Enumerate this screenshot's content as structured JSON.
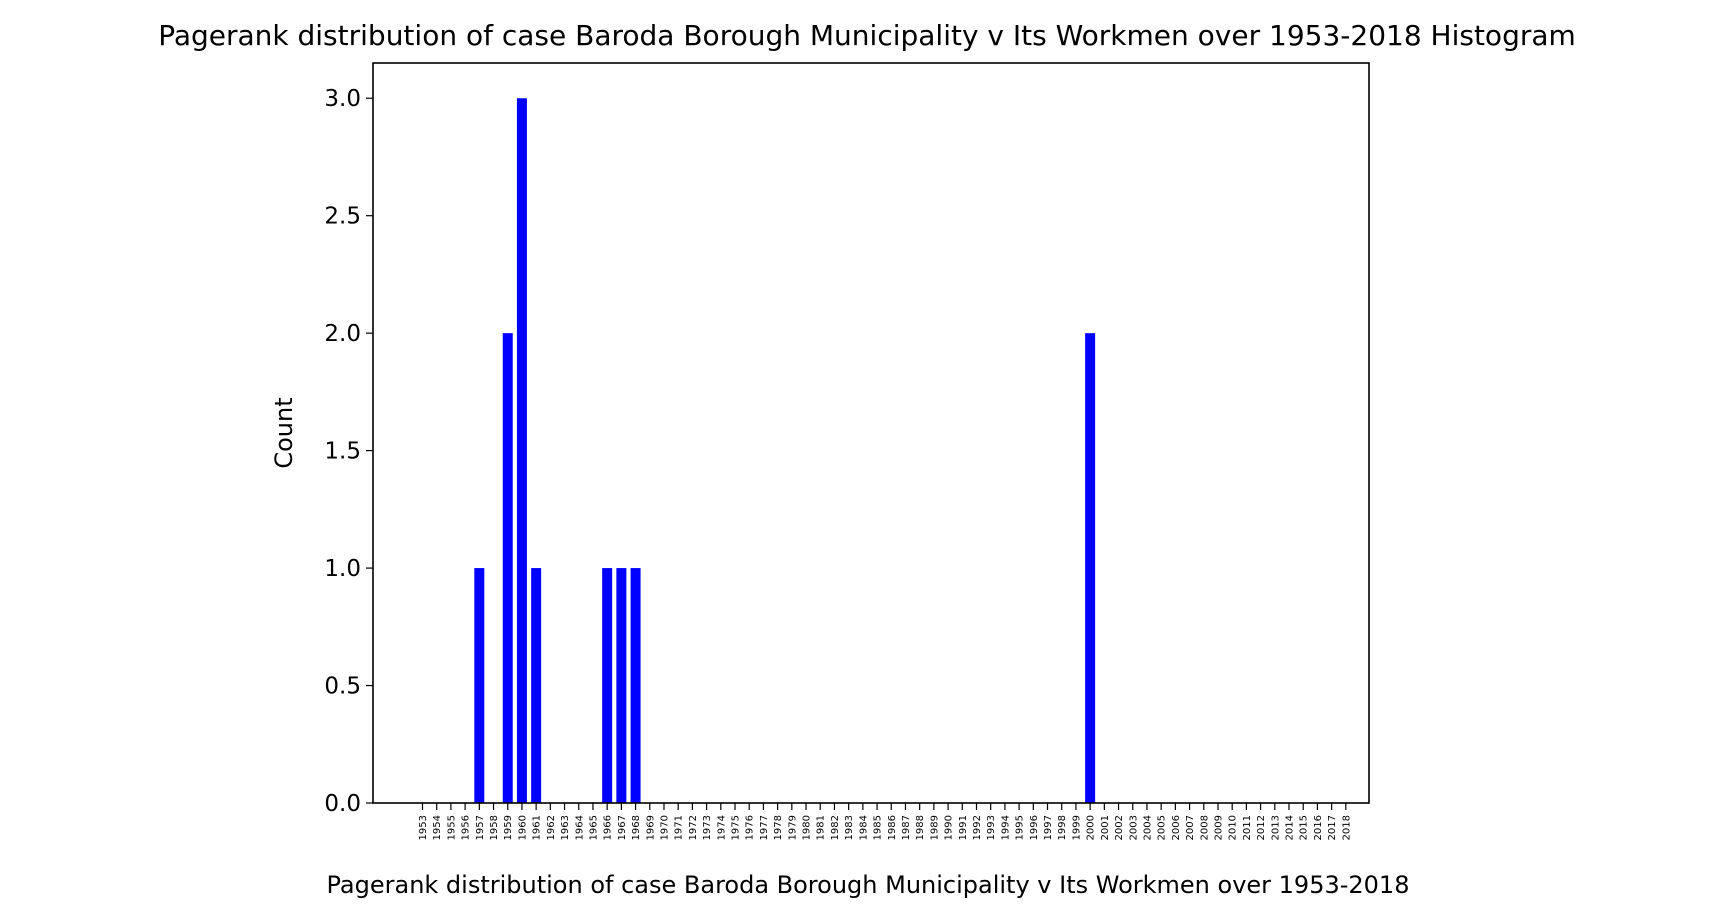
{
  "chart_data": {
    "type": "bar",
    "title": "Pagerank distribution of case Baroda Borough Municipality v Its Workmen over 1953-2018 Histogram",
    "xlabel": "Pagerank distribution of case Baroda Borough Municipality v Its Workmen over 1953-2018",
    "ylabel": "Count",
    "categories": [
      "1953",
      "1954",
      "1955",
      "1956",
      "1957",
      "1958",
      "1959",
      "1960",
      "1961",
      "1962",
      "1963",
      "1964",
      "1965",
      "1966",
      "1967",
      "1968",
      "1969",
      "1970",
      "1971",
      "1972",
      "1973",
      "1974",
      "1975",
      "1976",
      "1977",
      "1978",
      "1979",
      "1980",
      "1981",
      "1982",
      "1983",
      "1984",
      "1985",
      "1986",
      "1987",
      "1988",
      "1989",
      "1990",
      "1991",
      "1992",
      "1993",
      "1994",
      "1995",
      "1996",
      "1997",
      "1998",
      "1999",
      "2000",
      "2001",
      "2002",
      "2003",
      "2004",
      "2005",
      "2006",
      "2007",
      "2008",
      "2009",
      "2010",
      "2011",
      "2012",
      "2013",
      "2014",
      "2015",
      "2016",
      "2017",
      "2018"
    ],
    "values": [
      0,
      0,
      0,
      0,
      1,
      0,
      2,
      3,
      1,
      0,
      0,
      0,
      0,
      1,
      1,
      1,
      0,
      0,
      0,
      0,
      0,
      0,
      0,
      0,
      0,
      0,
      0,
      0,
      0,
      0,
      0,
      0,
      0,
      0,
      0,
      0,
      0,
      0,
      0,
      0,
      0,
      0,
      0,
      0,
      0,
      0,
      0,
      2,
      0,
      0,
      0,
      0,
      0,
      0,
      0,
      0,
      0,
      0,
      0,
      0,
      0,
      0,
      0,
      0,
      0,
      0
    ],
    "ylim": [
      0,
      3.15
    ],
    "yticks": [
      "0.0",
      "0.5",
      "1.0",
      "1.5",
      "2.0",
      "2.5",
      "3.0"
    ],
    "bar_color": "#0000ff",
    "grid": false,
    "legend": "none"
  }
}
